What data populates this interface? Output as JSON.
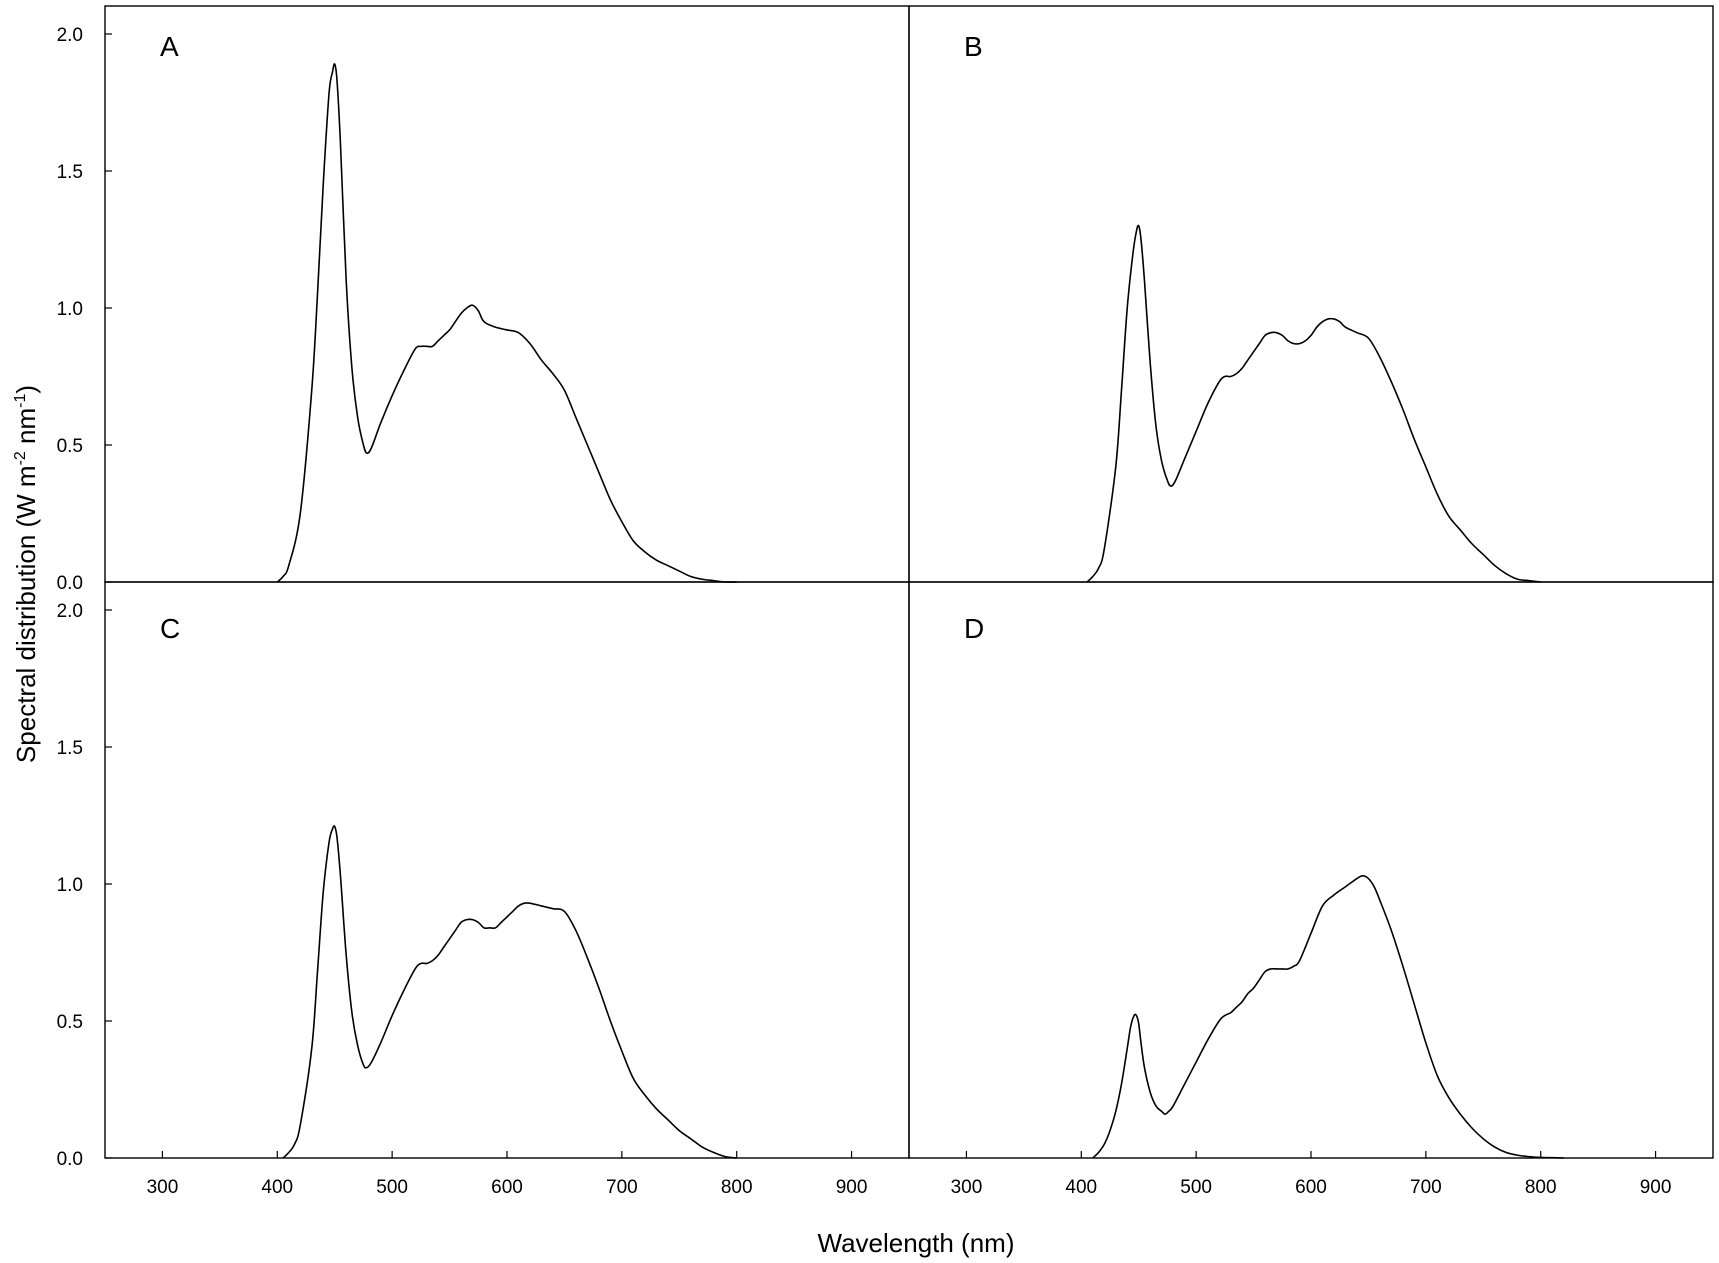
{
  "chart_data": {
    "type": "line",
    "layout": "2x2 panels, shared axes",
    "xlabel": "Wavelength (nm)",
    "ylabel": {
      "prefix": "Spectral distribution (W m",
      "sup1": "-2",
      "mid": " nm",
      "sup2": "-1",
      "suffix": ")"
    },
    "xlim": [
      250,
      950
    ],
    "ylim": [
      0,
      2.0
    ],
    "xticks": [
      300,
      400,
      500,
      600,
      700,
      800,
      900
    ],
    "xtick_labels": [
      "300",
      "400",
      "500",
      "600",
      "700",
      "800",
      "900"
    ],
    "yticks": [
      0,
      0.5,
      1.0,
      1.5,
      2.0
    ],
    "ytick_labels": [
      "0.0",
      "0.5",
      "1.0",
      "1.5",
      "2.0"
    ],
    "grid": false,
    "line_color": "#000000",
    "panels": [
      {
        "label": "A",
        "x": [
          400,
          405,
          410,
          420,
          430,
          435,
          440,
          445,
          448,
          450,
          452,
          455,
          460,
          465,
          470,
          475,
          478,
          482,
          490,
          500,
          510,
          520,
          525,
          530,
          535,
          540,
          545,
          550,
          555,
          560,
          565,
          570,
          575,
          580,
          590,
          600,
          610,
          620,
          630,
          640,
          650,
          660,
          670,
          680,
          690,
          700,
          710,
          720,
          730,
          740,
          750,
          760,
          770,
          780,
          790,
          800
        ],
        "y": [
          0,
          0.02,
          0.06,
          0.25,
          0.7,
          1.05,
          1.45,
          1.78,
          1.86,
          1.89,
          1.83,
          1.6,
          1.1,
          0.78,
          0.6,
          0.5,
          0.47,
          0.49,
          0.58,
          0.68,
          0.77,
          0.85,
          0.86,
          0.86,
          0.86,
          0.88,
          0.9,
          0.92,
          0.95,
          0.98,
          1.0,
          1.01,
          0.99,
          0.95,
          0.93,
          0.92,
          0.91,
          0.87,
          0.81,
          0.76,
          0.7,
          0.6,
          0.5,
          0.4,
          0.3,
          0.22,
          0.15,
          0.11,
          0.08,
          0.06,
          0.04,
          0.02,
          0.01,
          0.005,
          0,
          0
        ]
      },
      {
        "label": "B",
        "x": [
          405,
          410,
          415,
          420,
          430,
          435,
          440,
          445,
          448,
          450,
          452,
          455,
          460,
          465,
          470,
          475,
          478,
          482,
          490,
          500,
          510,
          520,
          525,
          530,
          535,
          540,
          545,
          550,
          555,
          560,
          565,
          570,
          575,
          580,
          585,
          590,
          595,
          600,
          605,
          610,
          615,
          620,
          625,
          630,
          640,
          650,
          660,
          670,
          680,
          690,
          700,
          710,
          720,
          730,
          740,
          750,
          760,
          770,
          780,
          790,
          800
        ],
        "y": [
          0,
          0.02,
          0.05,
          0.12,
          0.42,
          0.7,
          1.0,
          1.2,
          1.28,
          1.3,
          1.25,
          1.1,
          0.8,
          0.57,
          0.44,
          0.37,
          0.35,
          0.37,
          0.45,
          0.55,
          0.65,
          0.73,
          0.75,
          0.75,
          0.76,
          0.78,
          0.81,
          0.84,
          0.87,
          0.9,
          0.91,
          0.91,
          0.9,
          0.88,
          0.87,
          0.87,
          0.88,
          0.9,
          0.93,
          0.95,
          0.96,
          0.96,
          0.95,
          0.93,
          0.91,
          0.89,
          0.82,
          0.73,
          0.63,
          0.52,
          0.42,
          0.32,
          0.24,
          0.19,
          0.14,
          0.1,
          0.06,
          0.03,
          0.01,
          0.005,
          0
        ]
      },
      {
        "label": "C",
        "x": [
          405,
          410,
          415,
          420,
          430,
          435,
          440,
          445,
          448,
          450,
          452,
          455,
          460,
          465,
          470,
          475,
          478,
          482,
          490,
          500,
          510,
          520,
          525,
          530,
          535,
          540,
          545,
          550,
          555,
          560,
          565,
          570,
          575,
          580,
          585,
          590,
          595,
          600,
          605,
          610,
          615,
          620,
          630,
          640,
          650,
          660,
          670,
          680,
          690,
          700,
          710,
          720,
          730,
          740,
          750,
          760,
          770,
          780,
          790,
          800
        ],
        "y": [
          0,
          0.02,
          0.05,
          0.12,
          0.4,
          0.68,
          0.97,
          1.15,
          1.2,
          1.21,
          1.17,
          1.03,
          0.74,
          0.53,
          0.41,
          0.34,
          0.33,
          0.35,
          0.42,
          0.52,
          0.61,
          0.69,
          0.71,
          0.71,
          0.72,
          0.74,
          0.77,
          0.8,
          0.83,
          0.86,
          0.87,
          0.87,
          0.86,
          0.84,
          0.84,
          0.84,
          0.86,
          0.88,
          0.9,
          0.92,
          0.93,
          0.93,
          0.92,
          0.91,
          0.9,
          0.83,
          0.73,
          0.62,
          0.5,
          0.39,
          0.29,
          0.23,
          0.18,
          0.14,
          0.1,
          0.07,
          0.04,
          0.02,
          0.005,
          0
        ]
      },
      {
        "label": "D",
        "x": [
          410,
          415,
          420,
          425,
          430,
          435,
          440,
          443,
          446,
          448,
          450,
          452,
          455,
          460,
          465,
          470,
          473,
          476,
          480,
          490,
          500,
          510,
          520,
          525,
          530,
          535,
          540,
          545,
          550,
          555,
          560,
          565,
          570,
          575,
          580,
          585,
          590,
          600,
          610,
          620,
          630,
          640,
          645,
          650,
          655,
          660,
          670,
          680,
          690,
          700,
          710,
          720,
          730,
          740,
          750,
          760,
          770,
          780,
          790,
          800,
          810,
          820
        ],
        "y": [
          0,
          0.02,
          0.05,
          0.1,
          0.17,
          0.27,
          0.4,
          0.48,
          0.52,
          0.52,
          0.49,
          0.42,
          0.33,
          0.24,
          0.19,
          0.17,
          0.16,
          0.17,
          0.19,
          0.27,
          0.35,
          0.43,
          0.5,
          0.52,
          0.53,
          0.55,
          0.57,
          0.6,
          0.62,
          0.65,
          0.68,
          0.69,
          0.69,
          0.69,
          0.69,
          0.7,
          0.72,
          0.82,
          0.92,
          0.96,
          0.99,
          1.02,
          1.03,
          1.02,
          0.99,
          0.94,
          0.83,
          0.7,
          0.56,
          0.42,
          0.3,
          0.22,
          0.16,
          0.11,
          0.07,
          0.04,
          0.02,
          0.01,
          0.005,
          0.002,
          0.001,
          0
        ]
      }
    ]
  }
}
